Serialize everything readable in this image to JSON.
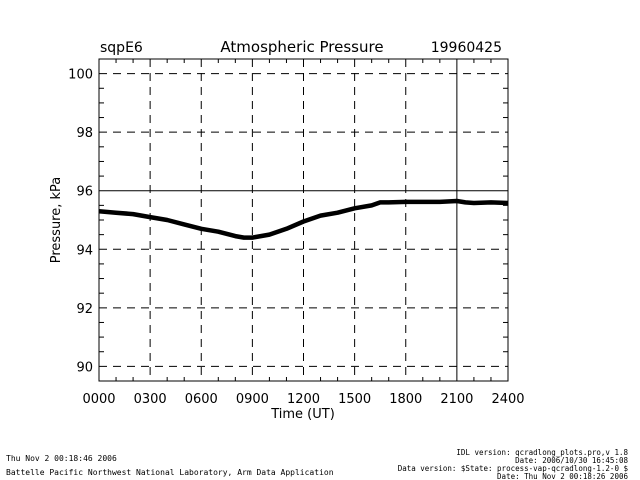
{
  "header": {
    "site": "sqpE6",
    "title": "Atmospheric Pressure",
    "date": "19960425"
  },
  "footer": {
    "left_line1": "Thu Nov  2 00:18:46 2006",
    "left_line2": "Battelle Pacific Northwest National Laboratory, Arm Data Application",
    "right_line1": "IDL version: qcradlong_plots.pro,v 1.8",
    "right_line2": "Date: 2006/10/30 16:45:08",
    "right_line3": "Data version: $State: process-vap-qcradlong-1.2-0 $",
    "right_line4": "Date: Thu Nov  2 00:18:26 2006"
  },
  "chart_data": {
    "type": "line",
    "title": "Atmospheric Pressure",
    "xlabel": "Time (UT)",
    "ylabel": "Pressure, kPa",
    "xlim": [
      0,
      24
    ],
    "ylim": [
      89.5,
      100.5
    ],
    "x_ticks": [
      0,
      3,
      6,
      9,
      12,
      15,
      18,
      21,
      24
    ],
    "x_tick_labels": [
      "0000",
      "0300",
      "0600",
      "0900",
      "1200",
      "1500",
      "1800",
      "2100",
      "2400"
    ],
    "y_ticks": [
      90,
      92,
      94,
      96,
      98,
      100
    ],
    "y_tick_labels": [
      "90",
      "92",
      "94",
      "96",
      "98",
      "100"
    ],
    "grid": true,
    "series": [
      {
        "color": "#000000",
        "x": [
          0,
          1,
          2,
          3,
          4,
          5,
          6,
          7,
          8,
          8.5,
          9,
          10,
          11,
          12,
          13,
          14,
          15,
          16,
          16.5,
          17,
          18,
          19,
          20,
          21,
          21.5,
          22,
          23,
          24
        ],
        "y": [
          95.3,
          95.25,
          95.2,
          95.1,
          95.0,
          94.85,
          94.7,
          94.6,
          94.45,
          94.4,
          94.4,
          94.5,
          94.7,
          94.95,
          95.15,
          95.25,
          95.4,
          95.5,
          95.6,
          95.6,
          95.62,
          95.62,
          95.62,
          95.65,
          95.6,
          95.58,
          95.6,
          95.58
        ]
      }
    ]
  }
}
